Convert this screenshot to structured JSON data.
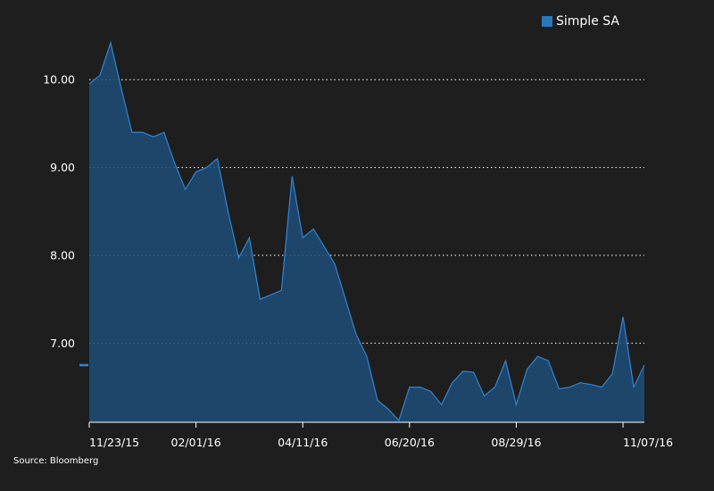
{
  "legend": {
    "label": "Simple SA",
    "color": "#2a78b8"
  },
  "source": "Source: Bloomberg",
  "chart_data": {
    "type": "area",
    "title": "",
    "xlabel": "",
    "ylabel": "",
    "ylim": [
      6.1,
      10.5
    ],
    "y_ticks": [
      7.0,
      8.0,
      9.0,
      10.0
    ],
    "y_tick_labels": [
      "7.00",
      "8.00",
      "9.00",
      "10.00"
    ],
    "x_tick_labels": [
      "11/23/15",
      "02/01/16",
      "04/11/16",
      "06/20/16",
      "08/29/16",
      "11/07/16"
    ],
    "x_tick_index": [
      0,
      10,
      20,
      30,
      40,
      50
    ],
    "grid": "horizontal-dotted",
    "legend_position": "top-right",
    "fill_color": "#1f4e79",
    "line_color": "#2e86d4",
    "series": [
      {
        "name": "Simple SA",
        "values": [
          9.95,
          10.05,
          10.42,
          9.9,
          9.4,
          9.4,
          9.35,
          9.4,
          9.05,
          8.75,
          8.95,
          9.0,
          9.1,
          8.5,
          7.97,
          8.2,
          7.5,
          7.55,
          7.6,
          8.9,
          8.2,
          8.3,
          8.1,
          7.9,
          7.5,
          7.1,
          6.85,
          6.35,
          6.25,
          6.12,
          6.5,
          6.5,
          6.45,
          6.3,
          6.55,
          6.68,
          6.67,
          6.4,
          6.5,
          6.8,
          6.3,
          6.7,
          6.85,
          6.8,
          6.48,
          6.5,
          6.55,
          6.53,
          6.5,
          6.65,
          7.3,
          6.5,
          6.75
        ]
      }
    ]
  }
}
